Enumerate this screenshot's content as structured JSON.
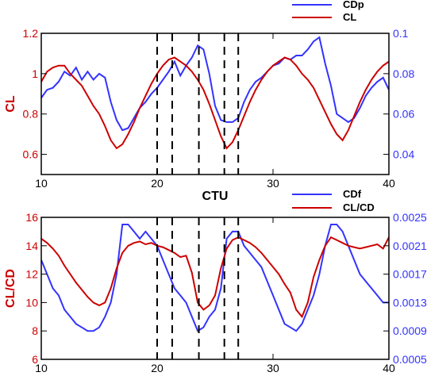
{
  "chart_data": [
    {
      "type": "line",
      "xlabel": "CTU",
      "ylabel": "CL",
      "y2label": "",
      "xlim": [
        10,
        40
      ],
      "ylim": [
        0.5,
        1.2
      ],
      "y2lim": [
        0.03,
        0.1
      ],
      "xticks": [
        "10",
        "20",
        "30",
        "40"
      ],
      "yticks": [
        "0.6",
        "0.8",
        "1",
        "1.2"
      ],
      "y2ticks": [
        "0.04",
        "0.06",
        "0.08",
        "0.1"
      ],
      "grid": false,
      "legend_position": "top-right",
      "vlines": [
        20.0,
        21.3,
        23.6,
        25.8,
        27.0
      ],
      "series": [
        {
          "name": "CDp",
          "axis": "right",
          "color": "#3333ff",
          "x": [
            10,
            10.5,
            11,
            11.5,
            12,
            12.5,
            13,
            13.5,
            14,
            14.5,
            15,
            15.5,
            16,
            16.5,
            17,
            17.5,
            18,
            18.5,
            19,
            19.5,
            20,
            20.5,
            21,
            21.5,
            22,
            22.5,
            23,
            23.5,
            24,
            24.5,
            25,
            25.5,
            26,
            26.5,
            27,
            27.5,
            28,
            28.5,
            29,
            29.5,
            30,
            30.5,
            31,
            31.5,
            32,
            32.5,
            33,
            33.5,
            34,
            34.5,
            35,
            35.5,
            36,
            36.5,
            37,
            37.5,
            38,
            38.5,
            39,
            39.5,
            40
          ],
          "values": [
            0.068,
            0.072,
            0.073,
            0.076,
            0.081,
            0.079,
            0.083,
            0.077,
            0.081,
            0.077,
            0.08,
            0.078,
            0.066,
            0.057,
            0.052,
            0.053,
            0.058,
            0.063,
            0.066,
            0.07,
            0.073,
            0.077,
            0.081,
            0.086,
            0.079,
            0.084,
            0.088,
            0.094,
            0.092,
            0.08,
            0.064,
            0.057,
            0.056,
            0.056,
            0.058,
            0.066,
            0.072,
            0.076,
            0.078,
            0.081,
            0.084,
            0.085,
            0.088,
            0.087,
            0.089,
            0.089,
            0.092,
            0.096,
            0.098,
            0.085,
            0.074,
            0.06,
            0.058,
            0.056,
            0.058,
            0.063,
            0.069,
            0.073,
            0.076,
            0.078,
            0.072
          ]
        },
        {
          "name": "CL",
          "axis": "left",
          "color": "#cc0000",
          "x": [
            10,
            10.5,
            11,
            11.5,
            12,
            12.5,
            13,
            13.5,
            14,
            14.5,
            15,
            15.5,
            16,
            16.5,
            17,
            17.5,
            18,
            18.5,
            19,
            19.5,
            20,
            20.5,
            21,
            21.5,
            22,
            22.5,
            23,
            23.5,
            24,
            24.5,
            25,
            25.5,
            26,
            26.5,
            27,
            27.5,
            28,
            28.5,
            29,
            29.5,
            30,
            30.5,
            31,
            31.5,
            32,
            32.5,
            33,
            33.5,
            34,
            34.5,
            35,
            35.5,
            36,
            36.5,
            37,
            37.5,
            38,
            38.5,
            39,
            39.5,
            40
          ],
          "values": [
            0.96,
            1.01,
            1.03,
            1.04,
            1.04,
            1.0,
            0.97,
            0.94,
            0.89,
            0.84,
            0.8,
            0.74,
            0.67,
            0.63,
            0.65,
            0.7,
            0.76,
            0.83,
            0.89,
            0.95,
            1.0,
            1.04,
            1.07,
            1.08,
            1.06,
            1.04,
            1.01,
            0.97,
            0.92,
            0.85,
            0.77,
            0.69,
            0.63,
            0.66,
            0.72,
            0.79,
            0.86,
            0.92,
            0.97,
            1.01,
            1.04,
            1.06,
            1.08,
            1.07,
            1.04,
            1.0,
            0.97,
            0.93,
            0.87,
            0.81,
            0.75,
            0.7,
            0.67,
            0.72,
            0.79,
            0.86,
            0.92,
            0.97,
            1.01,
            1.04,
            1.06
          ]
        }
      ]
    },
    {
      "type": "line",
      "xlabel": "",
      "ylabel": "CL/CD",
      "y2label": "",
      "xlim": [
        10,
        40
      ],
      "ylim": [
        6,
        16
      ],
      "y2lim": [
        0.0005,
        0.0025
      ],
      "xticks": [
        "10",
        "20",
        "30",
        "40"
      ],
      "yticks": [
        "6",
        "8",
        "10",
        "12",
        "14",
        "16"
      ],
      "y2ticks": [
        "0.0005",
        "0.0009",
        "0.0013",
        "0.0017",
        "0.0021",
        "0.0025"
      ],
      "y2ticks_shown": [
        "0.0005",
        "0.0009",
        "0.0013",
        "0.0017",
        "0.0021",
        "0.0025"
      ],
      "grid": false,
      "legend_position": "top-right",
      "vlines": [
        20.0,
        21.3,
        23.6,
        25.8,
        27.0
      ],
      "series": [
        {
          "name": "CDf",
          "axis": "right",
          "color": "#3333ff",
          "x": [
            10,
            10.5,
            11,
            11.5,
            12,
            12.5,
            13,
            13.5,
            14,
            14.5,
            15,
            15.5,
            16,
            16.5,
            17,
            17.5,
            18,
            18.5,
            19,
            19.5,
            20,
            20.5,
            21,
            21.5,
            22,
            22.5,
            23,
            23.5,
            24,
            24.5,
            25,
            25.5,
            26,
            26.5,
            27,
            27.5,
            28,
            28.5,
            29,
            29.5,
            30,
            30.5,
            31,
            31.5,
            32,
            32.5,
            33,
            33.5,
            34,
            34.5,
            35,
            35.5,
            36,
            36.5,
            37,
            37.5,
            38,
            38.5,
            39,
            39.5,
            40
          ],
          "values": [
            0.0019,
            0.0017,
            0.0015,
            0.0014,
            0.0012,
            0.0011,
            0.001,
            0.00095,
            0.0009,
            0.0009,
            0.00095,
            0.0011,
            0.0013,
            0.0017,
            0.0024,
            0.0024,
            0.0023,
            0.0022,
            0.0023,
            0.0022,
            0.0021,
            0.0019,
            0.0017,
            0.0015,
            0.0014,
            0.0013,
            0.0011,
            0.0009,
            0.00095,
            0.0011,
            0.0012,
            0.0015,
            0.0022,
            0.0023,
            0.0023,
            0.0021,
            0.002,
            0.0019,
            0.0018,
            0.0016,
            0.0014,
            0.0012,
            0.001,
            0.00095,
            0.0009,
            0.001,
            0.0012,
            0.0014,
            0.0017,
            0.0021,
            0.0024,
            0.0024,
            0.0023,
            0.0021,
            0.0019,
            0.0017,
            0.0016,
            0.0015,
            0.0014,
            0.0013,
            0.0013
          ]
        },
        {
          "name": "CL/CD",
          "axis": "left",
          "color": "#cc0000",
          "x": [
            10,
            10.5,
            11,
            11.5,
            12,
            12.5,
            13,
            13.5,
            14,
            14.5,
            15,
            15.5,
            16,
            16.5,
            17,
            17.5,
            18,
            18.5,
            19,
            19.5,
            20,
            20.5,
            21,
            21.5,
            22,
            22.5,
            23,
            23.5,
            24,
            24.5,
            25,
            25.5,
            26,
            26.5,
            27,
            27.5,
            28,
            28.5,
            29,
            29.5,
            30,
            30.5,
            31,
            31.5,
            32,
            32.5,
            33,
            33.5,
            34,
            34.5,
            35,
            35.5,
            36,
            36.5,
            37,
            37.5,
            38,
            38.5,
            39,
            39.5,
            40
          ],
          "values": [
            14.5,
            14.2,
            13.8,
            13.3,
            12.6,
            12.0,
            11.4,
            10.9,
            10.4,
            10.0,
            9.8,
            10.0,
            11.0,
            12.4,
            13.5,
            14.0,
            14.2,
            14.3,
            14.1,
            14.2,
            14.0,
            13.9,
            13.7,
            13.5,
            13.2,
            13.3,
            12.1,
            10.0,
            9.5,
            9.8,
            10.5,
            12.4,
            13.8,
            14.4,
            14.6,
            14.4,
            14.2,
            13.9,
            13.5,
            13.0,
            12.5,
            12.0,
            11.3,
            10.7,
            9.5,
            9.0,
            10.0,
            11.8,
            13.0,
            14.0,
            14.6,
            14.4,
            14.2,
            14.0,
            13.9,
            13.8,
            13.9,
            14.0,
            14.1,
            13.8,
            14.6
          ]
        }
      ]
    }
  ]
}
